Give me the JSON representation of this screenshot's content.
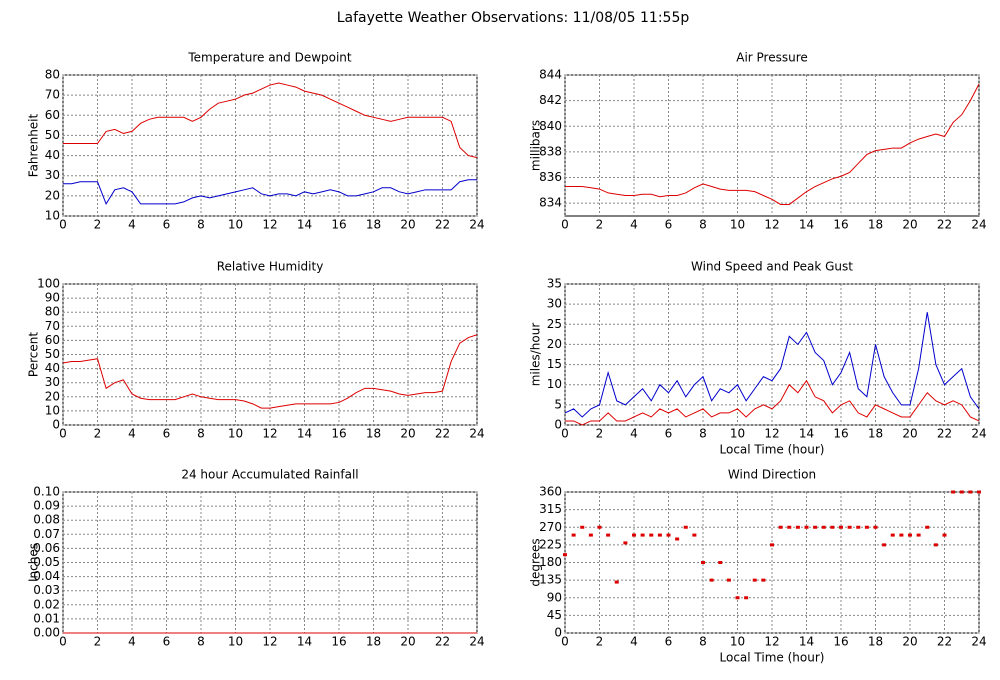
{
  "title": "Lafayette Weather Observations: 11/08/05 11:55p",
  "chart_data": [
    {
      "type": "line",
      "title": "Temperature and Dewpoint",
      "y_label": "Fahrenheit",
      "x": [
        0,
        0.5,
        1,
        1.5,
        2,
        2.5,
        3,
        3.5,
        4,
        4.5,
        5,
        5.5,
        6,
        6.5,
        7,
        7.5,
        8,
        8.5,
        9,
        9.5,
        10,
        10.5,
        11,
        11.5,
        12,
        12.5,
        13,
        13.5,
        14,
        14.5,
        15,
        15.5,
        16,
        16.5,
        17,
        17.5,
        18,
        18.5,
        19,
        19.5,
        20,
        20.5,
        21,
        21.5,
        22,
        22.5,
        23,
        23.5,
        24
      ],
      "series": [
        {
          "color": "#dd0000",
          "values": [
            46,
            46,
            46,
            46,
            46,
            52,
            53,
            51,
            52,
            56,
            58,
            59,
            59,
            59,
            59,
            57,
            59,
            63,
            66,
            67,
            68,
            70,
            71,
            73,
            75,
            76,
            75,
            74,
            72,
            71,
            70,
            68,
            66,
            64,
            62,
            60,
            59,
            58,
            57,
            58,
            59,
            59,
            59,
            59,
            59,
            57,
            44,
            40,
            39
          ]
        },
        {
          "color": "#0000cc",
          "values": [
            26,
            26,
            27,
            27,
            27,
            16,
            23,
            24,
            22,
            16,
            16,
            16,
            16,
            16,
            17,
            19,
            20,
            19,
            20,
            21,
            22,
            23,
            24,
            21,
            20,
            21,
            21,
            20,
            22,
            21,
            22,
            23,
            22,
            20,
            20,
            21,
            22,
            24,
            24,
            22,
            21,
            22,
            23,
            23,
            23,
            23,
            27,
            28,
            28
          ]
        }
      ],
      "xlim": [
        0,
        24
      ],
      "xticks": [
        0,
        2,
        4,
        6,
        8,
        10,
        12,
        14,
        16,
        18,
        20,
        22,
        24
      ],
      "ylim": [
        10,
        80
      ],
      "yticks": [
        10,
        20,
        30,
        40,
        50,
        60,
        70,
        80
      ],
      "grid": true
    },
    {
      "type": "line",
      "title": "Air Pressure",
      "y_label": "millibars",
      "x": [
        0,
        0.5,
        1,
        1.5,
        2,
        2.5,
        3,
        3.5,
        4,
        4.5,
        5,
        5.5,
        6,
        6.5,
        7,
        7.5,
        8,
        8.5,
        9,
        9.5,
        10,
        10.5,
        11,
        11.5,
        12,
        12.5,
        13,
        13.5,
        14,
        14.5,
        15,
        15.5,
        16,
        16.5,
        17,
        17.5,
        18,
        18.5,
        19,
        19.5,
        20,
        20.5,
        21,
        21.5,
        22,
        22.5,
        23,
        23.5,
        24
      ],
      "series": [
        {
          "color": "#dd0000",
          "values": [
            835.3,
            835.3,
            835.3,
            835.2,
            835.1,
            834.8,
            834.7,
            834.6,
            834.6,
            834.7,
            834.7,
            834.5,
            834.6,
            834.6,
            834.8,
            835.2,
            835.5,
            835.3,
            835.1,
            835.0,
            835.0,
            835.0,
            834.9,
            834.6,
            834.3,
            833.9,
            833.9,
            834.4,
            834.9,
            835.3,
            835.6,
            835.9,
            836.1,
            836.4,
            837.1,
            837.8,
            838.1,
            838.2,
            838.3,
            838.3,
            838.7,
            839.0,
            839.2,
            839.4,
            839.2,
            840.3,
            840.9,
            842.0,
            843.3
          ]
        }
      ],
      "xlim": [
        0,
        24
      ],
      "xticks": [
        0,
        2,
        4,
        6,
        8,
        10,
        12,
        14,
        16,
        18,
        20,
        22,
        24
      ],
      "ylim": [
        833,
        844
      ],
      "yticks": [
        834,
        836,
        838,
        840,
        842,
        844
      ],
      "grid": true
    },
    {
      "type": "line",
      "title": "Relative Humidity",
      "y_label": "Percent",
      "x": [
        0,
        0.5,
        1,
        1.5,
        2,
        2.5,
        3,
        3.5,
        4,
        4.5,
        5,
        5.5,
        6,
        6.5,
        7,
        7.5,
        8,
        8.5,
        9,
        9.5,
        10,
        10.5,
        11,
        11.5,
        12,
        12.5,
        13,
        13.5,
        14,
        14.5,
        15,
        15.5,
        16,
        16.5,
        17,
        17.5,
        18,
        18.5,
        19,
        19.5,
        20,
        20.5,
        21,
        21.5,
        22,
        22.5,
        23,
        23.5,
        24
      ],
      "series": [
        {
          "color": "#dd0000",
          "values": [
            44,
            45,
            45,
            46,
            47,
            26,
            30,
            32,
            22,
            19,
            18,
            18,
            18,
            18,
            20,
            22,
            20,
            19,
            18,
            18,
            18,
            17,
            15,
            12,
            12,
            13,
            14,
            15,
            15,
            15,
            15,
            15,
            16,
            19,
            23,
            26,
            26,
            25,
            24,
            22,
            21,
            22,
            23,
            23,
            24,
            45,
            58,
            62,
            64
          ]
        }
      ],
      "xlim": [
        0,
        24
      ],
      "xticks": [
        0,
        2,
        4,
        6,
        8,
        10,
        12,
        14,
        16,
        18,
        20,
        22,
        24
      ],
      "ylim": [
        0,
        100
      ],
      "yticks": [
        0,
        10,
        20,
        30,
        40,
        50,
        60,
        70,
        80,
        90,
        100
      ],
      "grid": true
    },
    {
      "type": "line",
      "title": "Wind Speed and Peak Gust",
      "y_label": "miles/hour",
      "x_label": "Local Time (hour)",
      "x": [
        0,
        0.5,
        1,
        1.5,
        2,
        2.5,
        3,
        3.5,
        4,
        4.5,
        5,
        5.5,
        6,
        6.5,
        7,
        7.5,
        8,
        8.5,
        9,
        9.5,
        10,
        10.5,
        11,
        11.5,
        12,
        12.5,
        13,
        13.5,
        14,
        14.5,
        15,
        15.5,
        16,
        16.5,
        17,
        17.5,
        18,
        18.5,
        19,
        19.5,
        20,
        20.5,
        21,
        21.5,
        22,
        22.5,
        23,
        23.5,
        24
      ],
      "series": [
        {
          "color": "#0000cc",
          "values": [
            3,
            4,
            2,
            4,
            5,
            13,
            6,
            5,
            7,
            9,
            6,
            10,
            8,
            11,
            7,
            10,
            12,
            6,
            9,
            8,
            10,
            6,
            9,
            12,
            11,
            14,
            22,
            20,
            23,
            18,
            16,
            10,
            13,
            18,
            9,
            7,
            20,
            12,
            8,
            5,
            5,
            14,
            28,
            15,
            10,
            12,
            14,
            7,
            4
          ]
        },
        {
          "color": "#dd0000",
          "values": [
            1,
            1,
            0,
            1,
            1,
            3,
            1,
            1,
            2,
            3,
            2,
            4,
            3,
            4,
            2,
            3,
            4,
            2,
            3,
            3,
            4,
            2,
            4,
            5,
            4,
            6,
            10,
            8,
            11,
            7,
            6,
            3,
            5,
            6,
            3,
            2,
            5,
            4,
            3,
            2,
            2,
            5,
            8,
            6,
            5,
            6,
            5,
            2,
            1
          ]
        }
      ],
      "xlim": [
        0,
        24
      ],
      "xticks": [
        0,
        2,
        4,
        6,
        8,
        10,
        12,
        14,
        16,
        18,
        20,
        22,
        24
      ],
      "ylim": [
        0,
        35
      ],
      "yticks": [
        0,
        5,
        10,
        15,
        20,
        25,
        30,
        35
      ],
      "grid": true
    },
    {
      "type": "line",
      "title": "24 hour Accumulated Rainfall",
      "y_label": "Inches",
      "x": [
        0,
        24
      ],
      "series": [
        {
          "color": "#dd0000",
          "values": [
            0,
            0
          ]
        }
      ],
      "xlim": [
        0,
        24
      ],
      "xticks": [
        0,
        2,
        4,
        6,
        8,
        10,
        12,
        14,
        16,
        18,
        20,
        22,
        24
      ],
      "ylim": [
        0,
        0.1
      ],
      "yticks": [
        {
          "value": 0,
          "label": "0.00"
        },
        {
          "value": 0.01,
          "label": "0.01"
        },
        {
          "value": 0.02,
          "label": "0.02"
        },
        {
          "value": 0.03,
          "label": "0.03"
        },
        {
          "value": 0.04,
          "label": "0.04"
        },
        {
          "value": 0.05,
          "label": "0.05"
        },
        {
          "value": 0.06,
          "label": "0.06"
        },
        {
          "value": 0.07,
          "label": "0.07"
        },
        {
          "value": 0.08,
          "label": "0.08"
        },
        {
          "value": 0.09,
          "label": "0.09"
        },
        {
          "value": 0.1,
          "label": "0.10"
        }
      ],
      "grid": true
    },
    {
      "type": "scatter",
      "title": "Wind Direction",
      "y_label": "degrees",
      "x_label": "Local Time (hour)",
      "x": [
        0,
        0.5,
        1,
        1.5,
        2,
        2.5,
        3,
        3.5,
        4,
        4.5,
        5,
        5.5,
        6,
        6.5,
        7,
        7.5,
        8,
        8.5,
        9,
        9.5,
        10,
        10.5,
        11,
        11.5,
        12,
        12.5,
        13,
        13.5,
        14,
        14.5,
        15,
        15.5,
        16,
        16.5,
        17,
        17.5,
        18,
        18.5,
        19,
        19.5,
        20,
        20.5,
        21,
        21.5,
        22,
        22.5,
        23,
        23.5,
        24
      ],
      "series": [
        {
          "color": "#dd0000",
          "values": [
            200,
            250,
            270,
            250,
            270,
            250,
            130,
            230,
            250,
            250,
            250,
            250,
            250,
            240,
            270,
            250,
            180,
            135,
            180,
            135,
            90,
            90,
            135,
            135,
            225,
            270,
            270,
            270,
            270,
            270,
            270,
            270,
            270,
            270,
            270,
            270,
            270,
            225,
            250,
            250,
            250,
            250,
            270,
            225,
            250,
            360,
            360,
            360,
            360
          ]
        }
      ],
      "xlim": [
        0,
        24
      ],
      "xticks": [
        0,
        2,
        4,
        6,
        8,
        10,
        12,
        14,
        16,
        18,
        20,
        22,
        24
      ],
      "ylim": [
        0,
        360
      ],
      "yticks": [
        0,
        45,
        90,
        135,
        180,
        225,
        270,
        315,
        360
      ],
      "grid": true
    }
  ]
}
